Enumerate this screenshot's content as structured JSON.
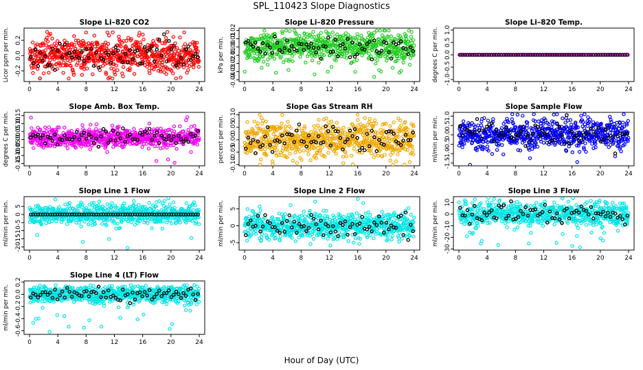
{
  "figure": {
    "title": "SPL_110423  Slope Diagnostics",
    "xlabel": "Hour of Day (UTC)"
  },
  "chart_data": [
    {
      "type": "scatter",
      "title": "Slope Li–820 CO2",
      "ylabel": "Licor ppm per min.",
      "xlim": [
        0,
        24
      ],
      "xticks": [
        0,
        4,
        8,
        12,
        16,
        20,
        24
      ],
      "ylim": [
        -0.34,
        0.36
      ],
      "yticks": [
        "-0.2",
        "0.0",
        "0.2"
      ],
      "ytick_values": [
        -0.2,
        0.0,
        0.2
      ],
      "color": "#ff0000",
      "noise": {
        "center": 0.0,
        "spread": 0.11,
        "outlier_range": [
          -0.3,
          0.31
        ]
      },
      "points": 700,
      "black_points": 70,
      "black_line": false
    },
    {
      "type": "scatter",
      "title": "Slope Li–820 Pressure",
      "ylabel": "kPa per min.",
      "xlim": [
        0,
        24
      ],
      "xticks": [
        0,
        4,
        8,
        12,
        16,
        20,
        24
      ],
      "ylim": [
        -0.042,
        0.023
      ],
      "yticks": [
        "-0.04",
        "-0.03",
        "-0.02",
        "-0.01",
        "0.00",
        "0.01",
        "0.02"
      ],
      "ytick_values": [
        -0.04,
        -0.03,
        -0.02,
        -0.01,
        0.0,
        0.01,
        0.02
      ],
      "color": "#22cc22",
      "noise": {
        "center": 0.0,
        "spread": 0.009,
        "outlier_range": [
          -0.04,
          0.02
        ]
      },
      "points": 700,
      "black_points": 70,
      "black_line": false
    },
    {
      "type": "scatter",
      "title": "Slope Li–820 Temp.",
      "ylabel": "degrees C per min.",
      "xlim": [
        0,
        24
      ],
      "xticks": [
        0,
        4,
        8,
        12,
        16,
        20,
        24
      ],
      "ylim": [
        -1.08,
        1.08
      ],
      "yticks": [
        "-1.0",
        "-0.5",
        "0.0",
        "0.5",
        "1.0"
      ],
      "ytick_values": [
        -1.0,
        -0.5,
        0.0,
        0.5,
        1.0
      ],
      "color": "#ee00ee",
      "noise": {
        "center": 0.0,
        "spread": 0.0,
        "outlier_range": [
          0.0,
          0.0
        ]
      },
      "points": 140,
      "black_points": 70,
      "black_line": true
    },
    {
      "type": "scatter",
      "title": "Slope Amb. Box Temp.",
      "ylabel": "degrees C per min.",
      "xlim": [
        0,
        24
      ],
      "xticks": [
        0,
        4,
        8,
        12,
        16,
        20,
        24
      ],
      "ylim": [
        -0.165,
        0.17
      ],
      "yticks": [
        "-0.15",
        "-0.10",
        "-0.05",
        "0.00",
        "0.05",
        "0.10",
        "0.15"
      ],
      "ytick_values": [
        -0.15,
        -0.1,
        -0.05,
        0.0,
        0.05,
        0.1,
        0.15
      ],
      "color": "#ee00ee",
      "noise": {
        "center": 0.01,
        "spread": 0.03,
        "outlier_range": [
          -0.15,
          0.15
        ]
      },
      "points": 700,
      "black_points": 70,
      "black_line": false
    },
    {
      "type": "scatter",
      "title": "Slope Gas Stream RH",
      "ylabel": "percent per min.",
      "xlim": [
        0,
        24
      ],
      "xticks": [
        0,
        4,
        8,
        12,
        16,
        20,
        24
      ],
      "ylim": [
        -0.105,
        0.11
      ],
      "yticks": [
        "-0.10",
        "-0.05",
        "0.00",
        "0.05",
        "0.10"
      ],
      "ytick_values": [
        -0.1,
        -0.05,
        0.0,
        0.05,
        0.1
      ],
      "color": "#f0a800",
      "noise": {
        "center": 0.0,
        "spread": 0.035,
        "outlier_range": [
          -0.1,
          0.1
        ]
      },
      "points": 700,
      "black_points": 70,
      "black_line": false
    },
    {
      "type": "scatter",
      "title": "Slope Sample Flow",
      "ylabel": "ml/min per min.",
      "xlim": [
        0,
        24
      ],
      "xticks": [
        0,
        4,
        8,
        12,
        16,
        20,
        24
      ],
      "ylim": [
        -1.65,
        1.2
      ],
      "yticks": [
        "-1.5",
        "-1.0",
        "-0.5",
        "0.0",
        "0.5",
        "1.0"
      ],
      "ytick_values": [
        -1.5,
        -1.0,
        -0.5,
        0.0,
        0.5,
        1.0
      ],
      "color": "#0000ee",
      "noise": {
        "center": 0.05,
        "spread": 0.4,
        "outlier_range": [
          -1.6,
          1.1
        ]
      },
      "points": 700,
      "black_points": 70,
      "black_line": false
    },
    {
      "type": "scatter",
      "title": "Slope Line 1 Flow",
      "ylabel": "ml/min per min.",
      "xlim": [
        0,
        24
      ],
      "xticks": [
        0,
        4,
        8,
        12,
        16,
        20,
        24
      ],
      "ylim": [
        -22,
        11
      ],
      "yticks": [
        "-20",
        "-15",
        "-10",
        "-5",
        "0",
        "5"
      ],
      "ytick_values": [
        -20,
        -15,
        -10,
        -5,
        0,
        5
      ],
      "color": "#00e5e5",
      "noise": {
        "center": 0.0,
        "spread": 3.2,
        "outlier_range": [
          -21,
          10
        ]
      },
      "points": 700,
      "black_points": 70,
      "black_line": true
    },
    {
      "type": "scatter",
      "title": "Slope Line 2 Flow",
      "ylabel": "ml/min per min.",
      "xlim": [
        0,
        24
      ],
      "xticks": [
        0,
        4,
        8,
        12,
        16,
        20,
        24
      ],
      "ylim": [
        -7.2,
        8.6
      ],
      "yticks": [
        "-5",
        "0",
        "5"
      ],
      "ytick_values": [
        -5,
        0,
        5
      ],
      "color": "#00e5e5",
      "noise": {
        "center": 0.0,
        "spread": 2.0,
        "outlier_range": [
          -7,
          8
        ]
      },
      "points": 700,
      "black_points": 70,
      "black_line": false
    },
    {
      "type": "scatter",
      "title": "Slope Line 3 Flow",
      "ylabel": "ml/min per min.",
      "xlim": [
        0,
        24
      ],
      "xticks": [
        0,
        4,
        8,
        12,
        16,
        20,
        24
      ],
      "ylim": [
        -31,
        15
      ],
      "yticks": [
        "-30",
        "-20",
        "-10",
        "0",
        "10"
      ],
      "ytick_values": [
        -30,
        -20,
        -10,
        0,
        10
      ],
      "color": "#00e5e5",
      "noise": {
        "center": 0.0,
        "spread": 5.0,
        "outlier_range": [
          -30,
          14
        ]
      },
      "points": 700,
      "black_points": 70,
      "black_line": false
    },
    {
      "type": "scatter",
      "title": "Slope Line 4 (LT) Flow",
      "ylabel": "ml/min per min.",
      "xlim": [
        0,
        24
      ],
      "xticks": [
        0,
        4,
        8,
        12,
        16,
        20,
        24
      ],
      "ylim": [
        -0.66,
        0.22
      ],
      "yticks": [
        "-0.6",
        "-0.4",
        "-0.2",
        "0.0",
        "0.2"
      ],
      "ytick_values": [
        -0.6,
        -0.4,
        -0.2,
        0.0,
        0.2
      ],
      "color": "#00e5e5",
      "noise": {
        "center": 0.0,
        "spread": 0.07,
        "outlier_range": [
          -0.65,
          0.15
        ]
      },
      "points": 700,
      "black_points": 70,
      "black_line": false
    }
  ]
}
